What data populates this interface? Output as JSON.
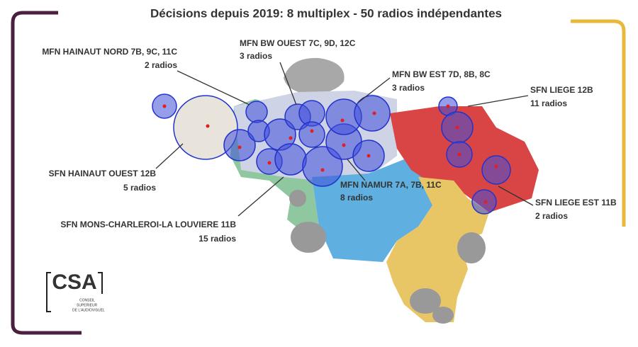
{
  "title": "Décisions depuis 2019: 8 multiplex - 50 radios indépendantes",
  "labels": [
    {
      "name": "MFN HAINAUT NORD 7B, 9C, 11C",
      "count": "2 radios"
    },
    {
      "name": "MFN BW OUEST 7C, 9D, 12C",
      "count": "3 radios"
    },
    {
      "name": "MFN BW EST 7D, 8B, 8C",
      "count": "3 radios"
    },
    {
      "name": "SFN LIEGE 12B",
      "count": "11 radios"
    },
    {
      "name": "SFN HAINAUT OUEST 12B",
      "count": "5 radios"
    },
    {
      "name": "MFN NAMUR 7A, 7B, 11C",
      "count": "8 radios"
    },
    {
      "name": "SFN MONS-CHARLEROI-LA LOUVIERE 11B",
      "count": "15 radios"
    },
    {
      "name": "SFN LIEGE EST 11B",
      "count": "2 radios"
    }
  ],
  "logo": {
    "name": "CSA",
    "lines": [
      "CONSEIL",
      "SUPERIEUR",
      "DE L'AUDIOVISUEL"
    ]
  }
}
